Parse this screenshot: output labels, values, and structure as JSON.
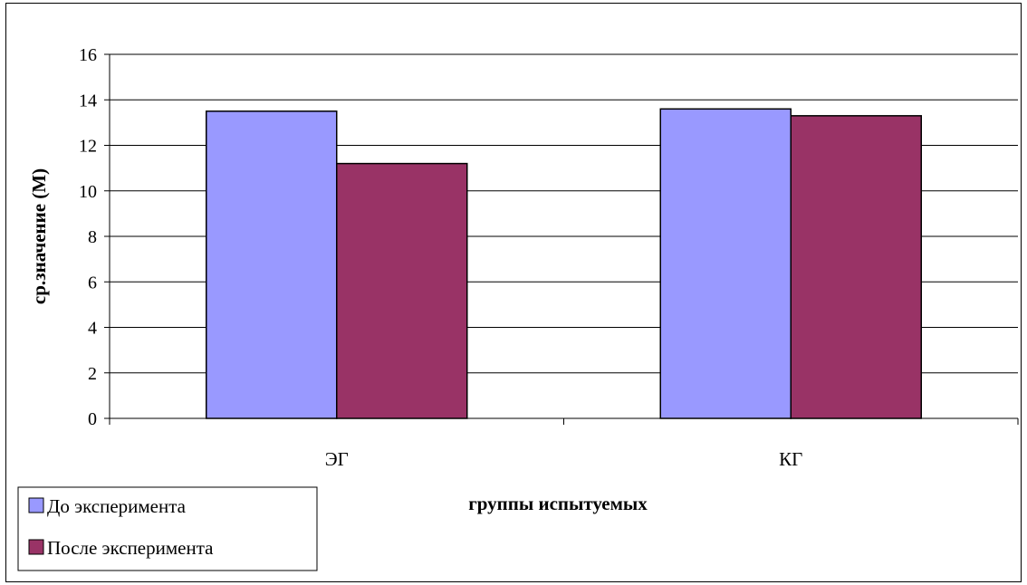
{
  "chart_data": {
    "type": "bar",
    "categories": [
      "ЭГ",
      "КГ"
    ],
    "series": [
      {
        "name": "До эксперимента",
        "values": [
          13.5,
          13.6
        ],
        "color": "#9999ff"
      },
      {
        "name": "После эксперимента",
        "values": [
          11.2,
          13.3
        ],
        "color": "#993366"
      }
    ],
    "xlabel": "группы испытуемых",
    "ylabel": "ср.значение (М)",
    "ylim": [
      0,
      16
    ],
    "yticks": [
      0,
      2,
      4,
      6,
      8,
      10,
      12,
      14,
      16
    ],
    "grid": true,
    "legend": "bottom-left"
  }
}
